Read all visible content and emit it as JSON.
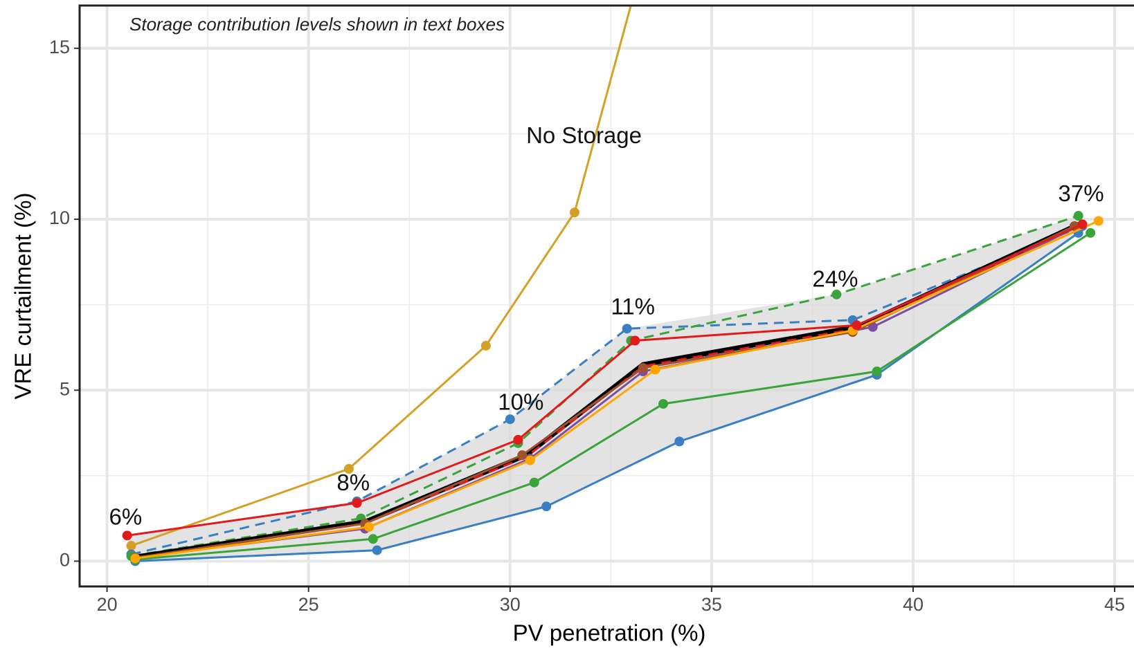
{
  "chart_data": {
    "type": "line",
    "annotation": "Storage contribution levels shown in text boxes",
    "xlabel": "PV penetration (%)",
    "ylabel": "VRE curtailment (%)",
    "xlim": [
      19.32,
      45.48
    ],
    "ylim": [
      -0.74,
      16.25
    ],
    "xticks": [
      20,
      25,
      30,
      35,
      40,
      45
    ],
    "yticks": [
      0,
      5,
      10,
      15
    ],
    "xminor": [
      22.5,
      27.5,
      32.5,
      37.5,
      42.5
    ],
    "yminor": [
      2.5,
      7.5,
      12.5
    ],
    "grid": true,
    "labels": [
      "No Storage",
      "6%",
      "8%",
      "10%",
      "11%",
      "24%",
      "37%"
    ],
    "series": [
      {
        "color": "#d4a025",
        "dash": "solid",
        "width": 3,
        "markers": true,
        "x": [
          20.6,
          26.0,
          29.4,
          31.6,
          33.4
        ],
        "values": [
          0.45,
          2.7,
          6.3,
          10.2,
          18
        ]
      },
      {
        "color": "#3a7fc1",
        "dash": "dashed",
        "width": 3,
        "markers": true,
        "x": [
          20.6,
          26.2,
          30.0,
          32.9,
          38.5,
          44.2
        ],
        "values": [
          0.2,
          1.75,
          4.15,
          6.8,
          7.05,
          9.8
        ]
      },
      {
        "color": "#3aa33a",
        "dash": "dashed",
        "width": 3,
        "markers": true,
        "x": [
          20.6,
          26.3,
          30.2,
          33.0,
          38.1,
          44.1
        ],
        "values": [
          0.15,
          1.25,
          3.45,
          6.45,
          7.8,
          10.1
        ]
      },
      {
        "color": "#3a7fc1",
        "dash": "solid",
        "width": 3,
        "markers": true,
        "x": [
          20.7,
          26.7,
          30.9,
          34.2,
          39.1,
          44.1
        ],
        "values": [
          0.0,
          0.32,
          1.6,
          3.5,
          5.45,
          9.6
        ]
      },
      {
        "color": "#3aa33a",
        "dash": "solid",
        "width": 3,
        "markers": true,
        "x": [
          20.7,
          26.6,
          30.6,
          33.8,
          39.1,
          44.4
        ],
        "values": [
          0.05,
          0.65,
          2.3,
          4.6,
          5.55,
          9.6
        ]
      },
      {
        "color": "#000000",
        "dash": "solid",
        "width": 7,
        "markers": false,
        "x": [
          20.7,
          26.4,
          30.4,
          33.3,
          38.6,
          44.2
        ],
        "values": [
          0.12,
          1.15,
          3.1,
          5.75,
          6.85,
          9.9
        ]
      },
      {
        "color": "#e31a1c",
        "dash": "dashed",
        "width": 3,
        "markers": false,
        "x": [
          20.7,
          26.4,
          30.4,
          33.3,
          38.6,
          44.2
        ],
        "values": [
          0.1,
          1.1,
          3.05,
          5.7,
          6.8,
          9.85
        ]
      },
      {
        "color": "#7b4fa0",
        "dash": "solid",
        "width": 3,
        "markers": true,
        "x": [
          20.7,
          26.4,
          30.5,
          33.3,
          39.0,
          44.2
        ],
        "values": [
          0.1,
          0.95,
          3.0,
          5.55,
          6.85,
          9.85
        ]
      },
      {
        "color": "#a0522d",
        "dash": "solid",
        "width": 3,
        "markers": true,
        "x": [
          20.7,
          26.4,
          30.3,
          33.3,
          38.5,
          44.0
        ],
        "values": [
          0.1,
          1.1,
          3.1,
          5.65,
          6.7,
          9.8
        ]
      },
      {
        "color": "#ffa500",
        "dash": "solid",
        "width": 3,
        "markers": true,
        "x": [
          20.7,
          26.5,
          30.5,
          33.6,
          38.5,
          44.6
        ],
        "values": [
          0.08,
          1.0,
          2.95,
          5.6,
          6.75,
          9.95
        ]
      },
      {
        "color": "#e31a1c",
        "dash": "solid",
        "width": 3,
        "markers": true,
        "x": [
          20.5,
          26.2,
          30.2,
          33.1,
          38.6,
          44.2
        ],
        "values": [
          0.75,
          1.7,
          3.55,
          6.45,
          6.9,
          9.85
        ]
      }
    ]
  }
}
